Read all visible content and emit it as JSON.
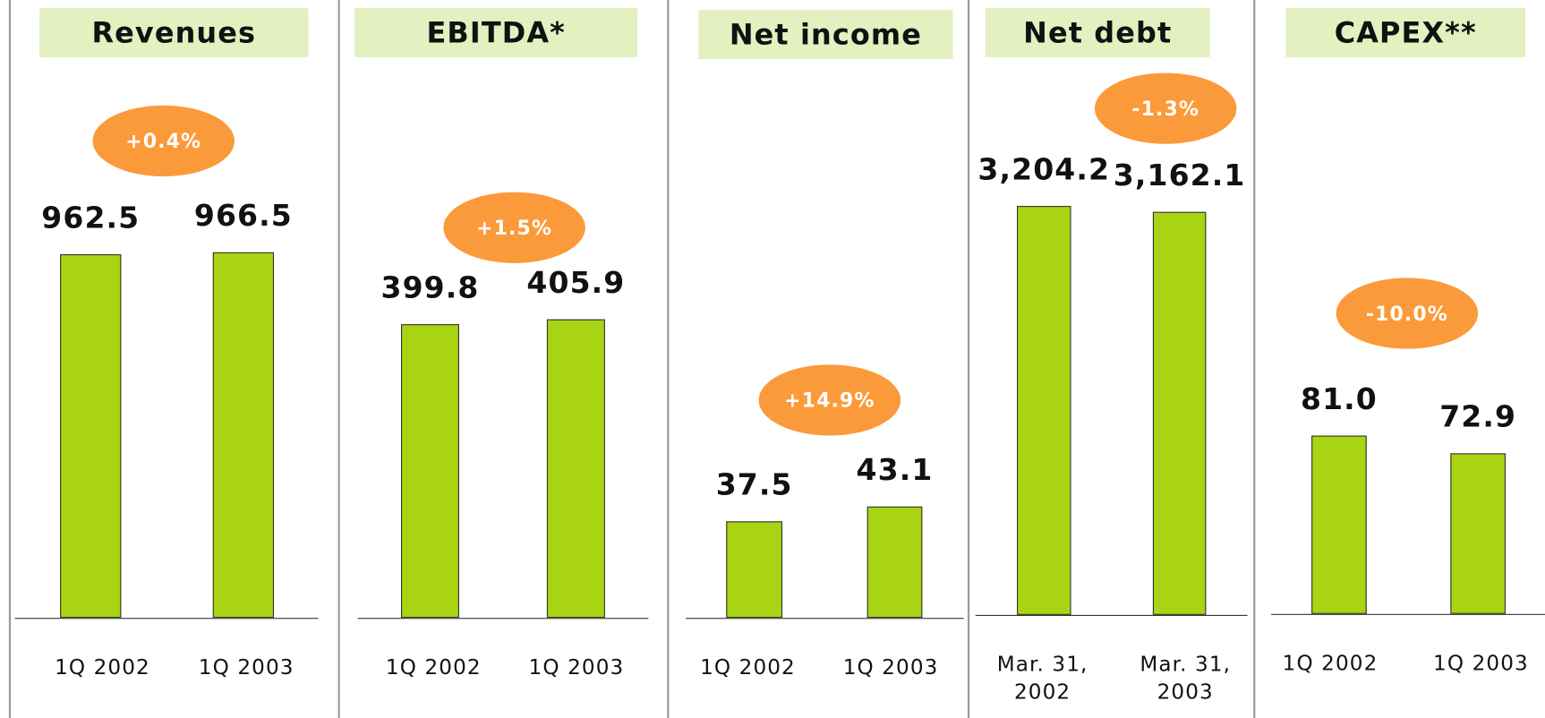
{
  "chart_data": [
    {
      "type": "bar",
      "title": "Revenues",
      "annotation": "+0.4%",
      "categories": [
        "1Q 2002",
        "1Q 2003"
      ],
      "values": [
        962.5,
        966.5
      ],
      "value_labels": [
        "962.5",
        "966.5"
      ],
      "ylim": [
        0,
        1400
      ],
      "color": "#a8d414"
    },
    {
      "type": "bar",
      "title": "EBITDA*",
      "annotation": "+1.5%",
      "categories": [
        "1Q 2002",
        "1Q 2003"
      ],
      "values": [
        399.8,
        405.9
      ],
      "value_labels": [
        "399.8",
        "405.9"
      ],
      "ylim": [
        0,
        720
      ],
      "color": "#a8d414"
    },
    {
      "type": "bar",
      "title": "Net income",
      "annotation": "+14.9%",
      "categories": [
        "1Q 2002",
        "1Q 2003"
      ],
      "values": [
        37.5,
        43.1
      ],
      "value_labels": [
        "37.5",
        "43.1"
      ],
      "ylim": [
        0,
        205
      ],
      "color": "#a8d414"
    },
    {
      "type": "bar",
      "title": "Net debt",
      "annotation": "-1.3%",
      "categories": [
        "Mar. 31, 2002",
        "Mar. 31, 2003"
      ],
      "values": [
        3204.2,
        3162.1
      ],
      "value_labels": [
        "3,204.2",
        "3,162.1"
      ],
      "ylim": [
        0,
        4150
      ],
      "color": "#a8d414"
    },
    {
      "type": "bar",
      "title": "CAPEX**",
      "annotation": "-10.0%",
      "categories": [
        "1Q 2002",
        "1Q 2003"
      ],
      "values": [
        81.0,
        72.9
      ],
      "value_labels": [
        "81.0",
        "72.9"
      ],
      "ylim": [
        0,
        240
      ],
      "color": "#a8d414"
    }
  ]
}
